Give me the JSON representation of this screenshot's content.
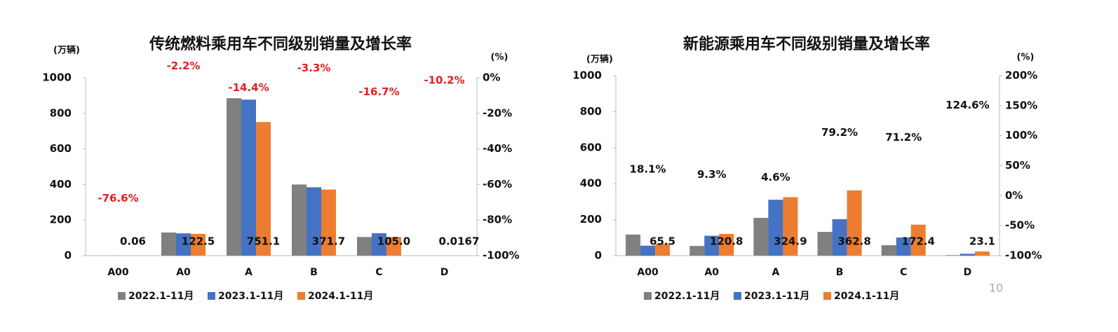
{
  "chart_data": [
    {
      "type": "bar",
      "title": "传统燃料乘用车不同级别销量及增长率",
      "y_label": "(万辆)",
      "y2_label": "(%)",
      "categories": [
        "A00",
        "A0",
        "A",
        "B",
        "C",
        "D"
      ],
      "series": [
        {
          "name": "2022.1-11月",
          "color": "#808080",
          "values": [
            0.1,
            130,
            885,
            400,
            105,
            0.02
          ]
        },
        {
          "name": "2023.1-11月",
          "color": "#4472c4",
          "values": [
            0.26,
            125.3,
            877,
            384.4,
            126,
            0.0186
          ]
        },
        {
          "name": "2024.1-11月",
          "color": "#ed7d31",
          "values": [
            0.06,
            122.5,
            751.1,
            371.7,
            105,
            0.0167
          ],
          "value_labels": [
            "0.06",
            "122.5",
            "751.1",
            "371.7",
            "105.0",
            "0.0167"
          ]
        }
      ],
      "growth": {
        "axis": "y2",
        "color": "#e02020",
        "values": [
          -76.6,
          -2.2,
          -14.4,
          -3.3,
          -16.7,
          -10.2
        ],
        "value_labels": [
          "-76.6%",
          "-2.2%",
          "-14.4%",
          "-3.3%",
          "-16.7%",
          "-10.2%"
        ]
      },
      "ylim": [
        0,
        1000
      ],
      "yticks": [
        0,
        200,
        400,
        600,
        800,
        1000
      ],
      "y2lim": [
        -100,
        0
      ],
      "y2ticks": [
        {
          "value": -100,
          "label": "-100%"
        },
        {
          "value": -80,
          "label": "-80%"
        },
        {
          "value": -60,
          "label": "-60%"
        },
        {
          "value": -40,
          "label": "-40%"
        },
        {
          "value": -20,
          "label": "-20%"
        },
        {
          "value": 0,
          "label": "0%"
        }
      ]
    },
    {
      "type": "bar",
      "title": "新能源乘用车不同级别销量及增长率",
      "y_label": "(万辆)",
      "y2_label": "(%)",
      "categories": [
        "A00",
        "A0",
        "A",
        "B",
        "C",
        "D"
      ],
      "series": [
        {
          "name": "2022.1-11月",
          "color": "#808080",
          "values": [
            117,
            54,
            210,
            132,
            58,
            3
          ]
        },
        {
          "name": "2023.1-11月",
          "color": "#4472c4",
          "values": [
            55.5,
            110.5,
            310.6,
            202.5,
            100.7,
            10.3
          ]
        },
        {
          "name": "2024.1-11月",
          "color": "#ed7d31",
          "values": [
            65.5,
            120.8,
            324.9,
            362.8,
            172.4,
            23.1
          ]
        }
      ],
      "growth": {
        "axis": "y2",
        "color": "#111111",
        "values": [
          18.1,
          9.3,
          4.6,
          79.2,
          71.2,
          124.6
        ],
        "value_labels": [
          "18.1%",
          "9.3%",
          "4.6%",
          "79.2%",
          "71.2%",
          "124.6%"
        ]
      },
      "ylim": [
        0,
        1000
      ],
      "yticks": [
        0,
        200,
        400,
        600,
        800,
        1000
      ],
      "y2lim": [
        -100,
        200
      ],
      "y2ticks": [
        {
          "value": -100,
          "label": "-100%"
        },
        {
          "value": -50,
          "label": "-50%"
        },
        {
          "value": 0,
          "label": "0%"
        },
        {
          "value": 50,
          "label": "50%"
        },
        {
          "value": 100,
          "label": "100%"
        },
        {
          "value": 150,
          "label": "150%"
        },
        {
          "value": 200,
          "label": "200%"
        }
      ]
    }
  ],
  "page_number": "10"
}
